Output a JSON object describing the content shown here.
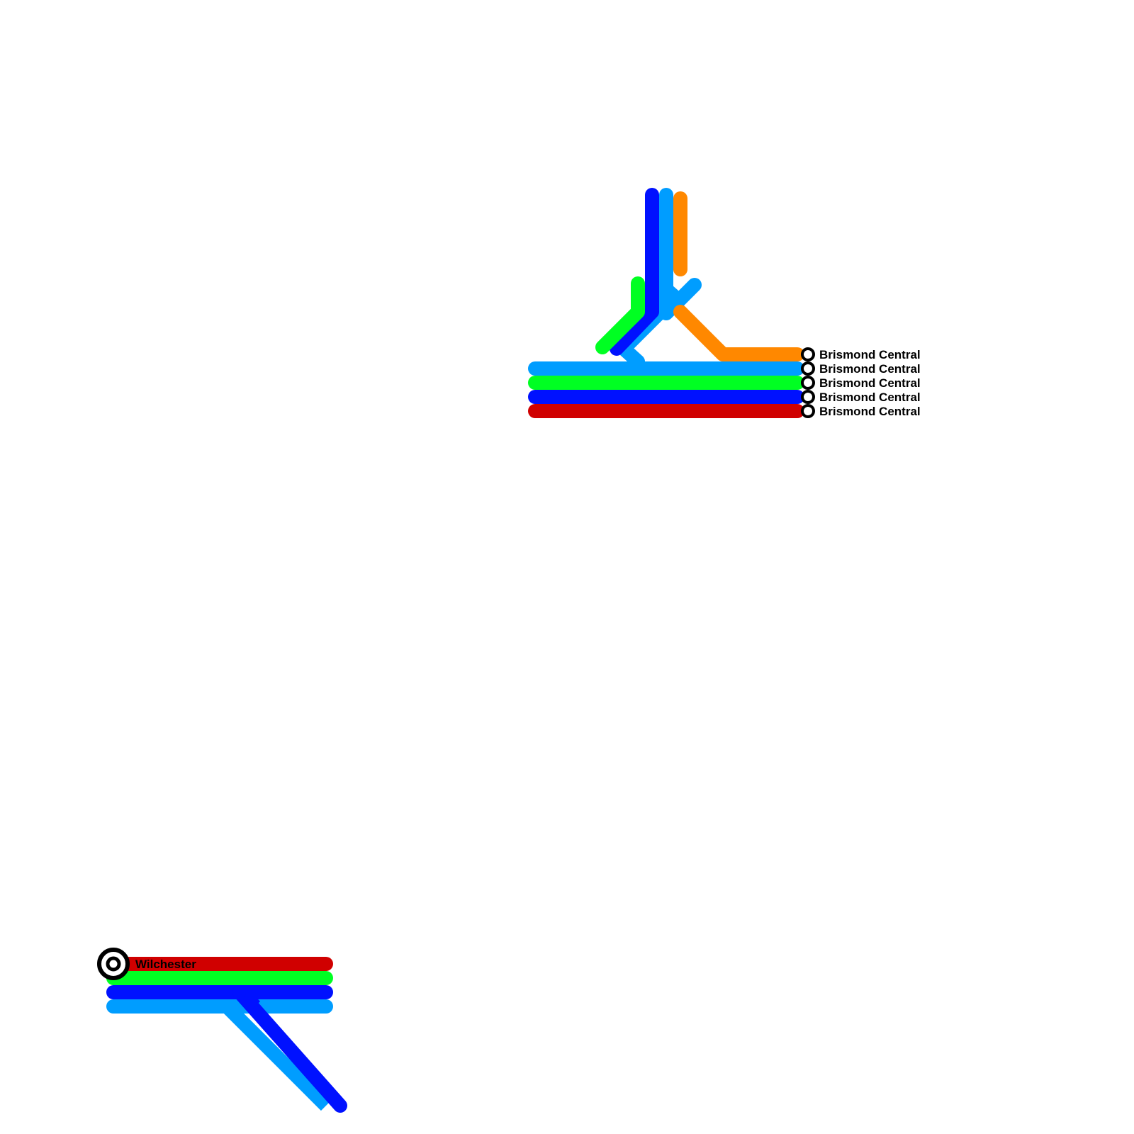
{
  "colors": {
    "red": "#d00000",
    "green": "#00ff22",
    "blue": "#0011ff",
    "lightblue": "#009dff",
    "orange": "#ff8800"
  },
  "stations": {
    "brismond": [
      "Brismond Central",
      "Brismond Central",
      "Brismond Central",
      "Brismond Central",
      "Brismond Central"
    ],
    "wilchester": "Wilchester"
  }
}
